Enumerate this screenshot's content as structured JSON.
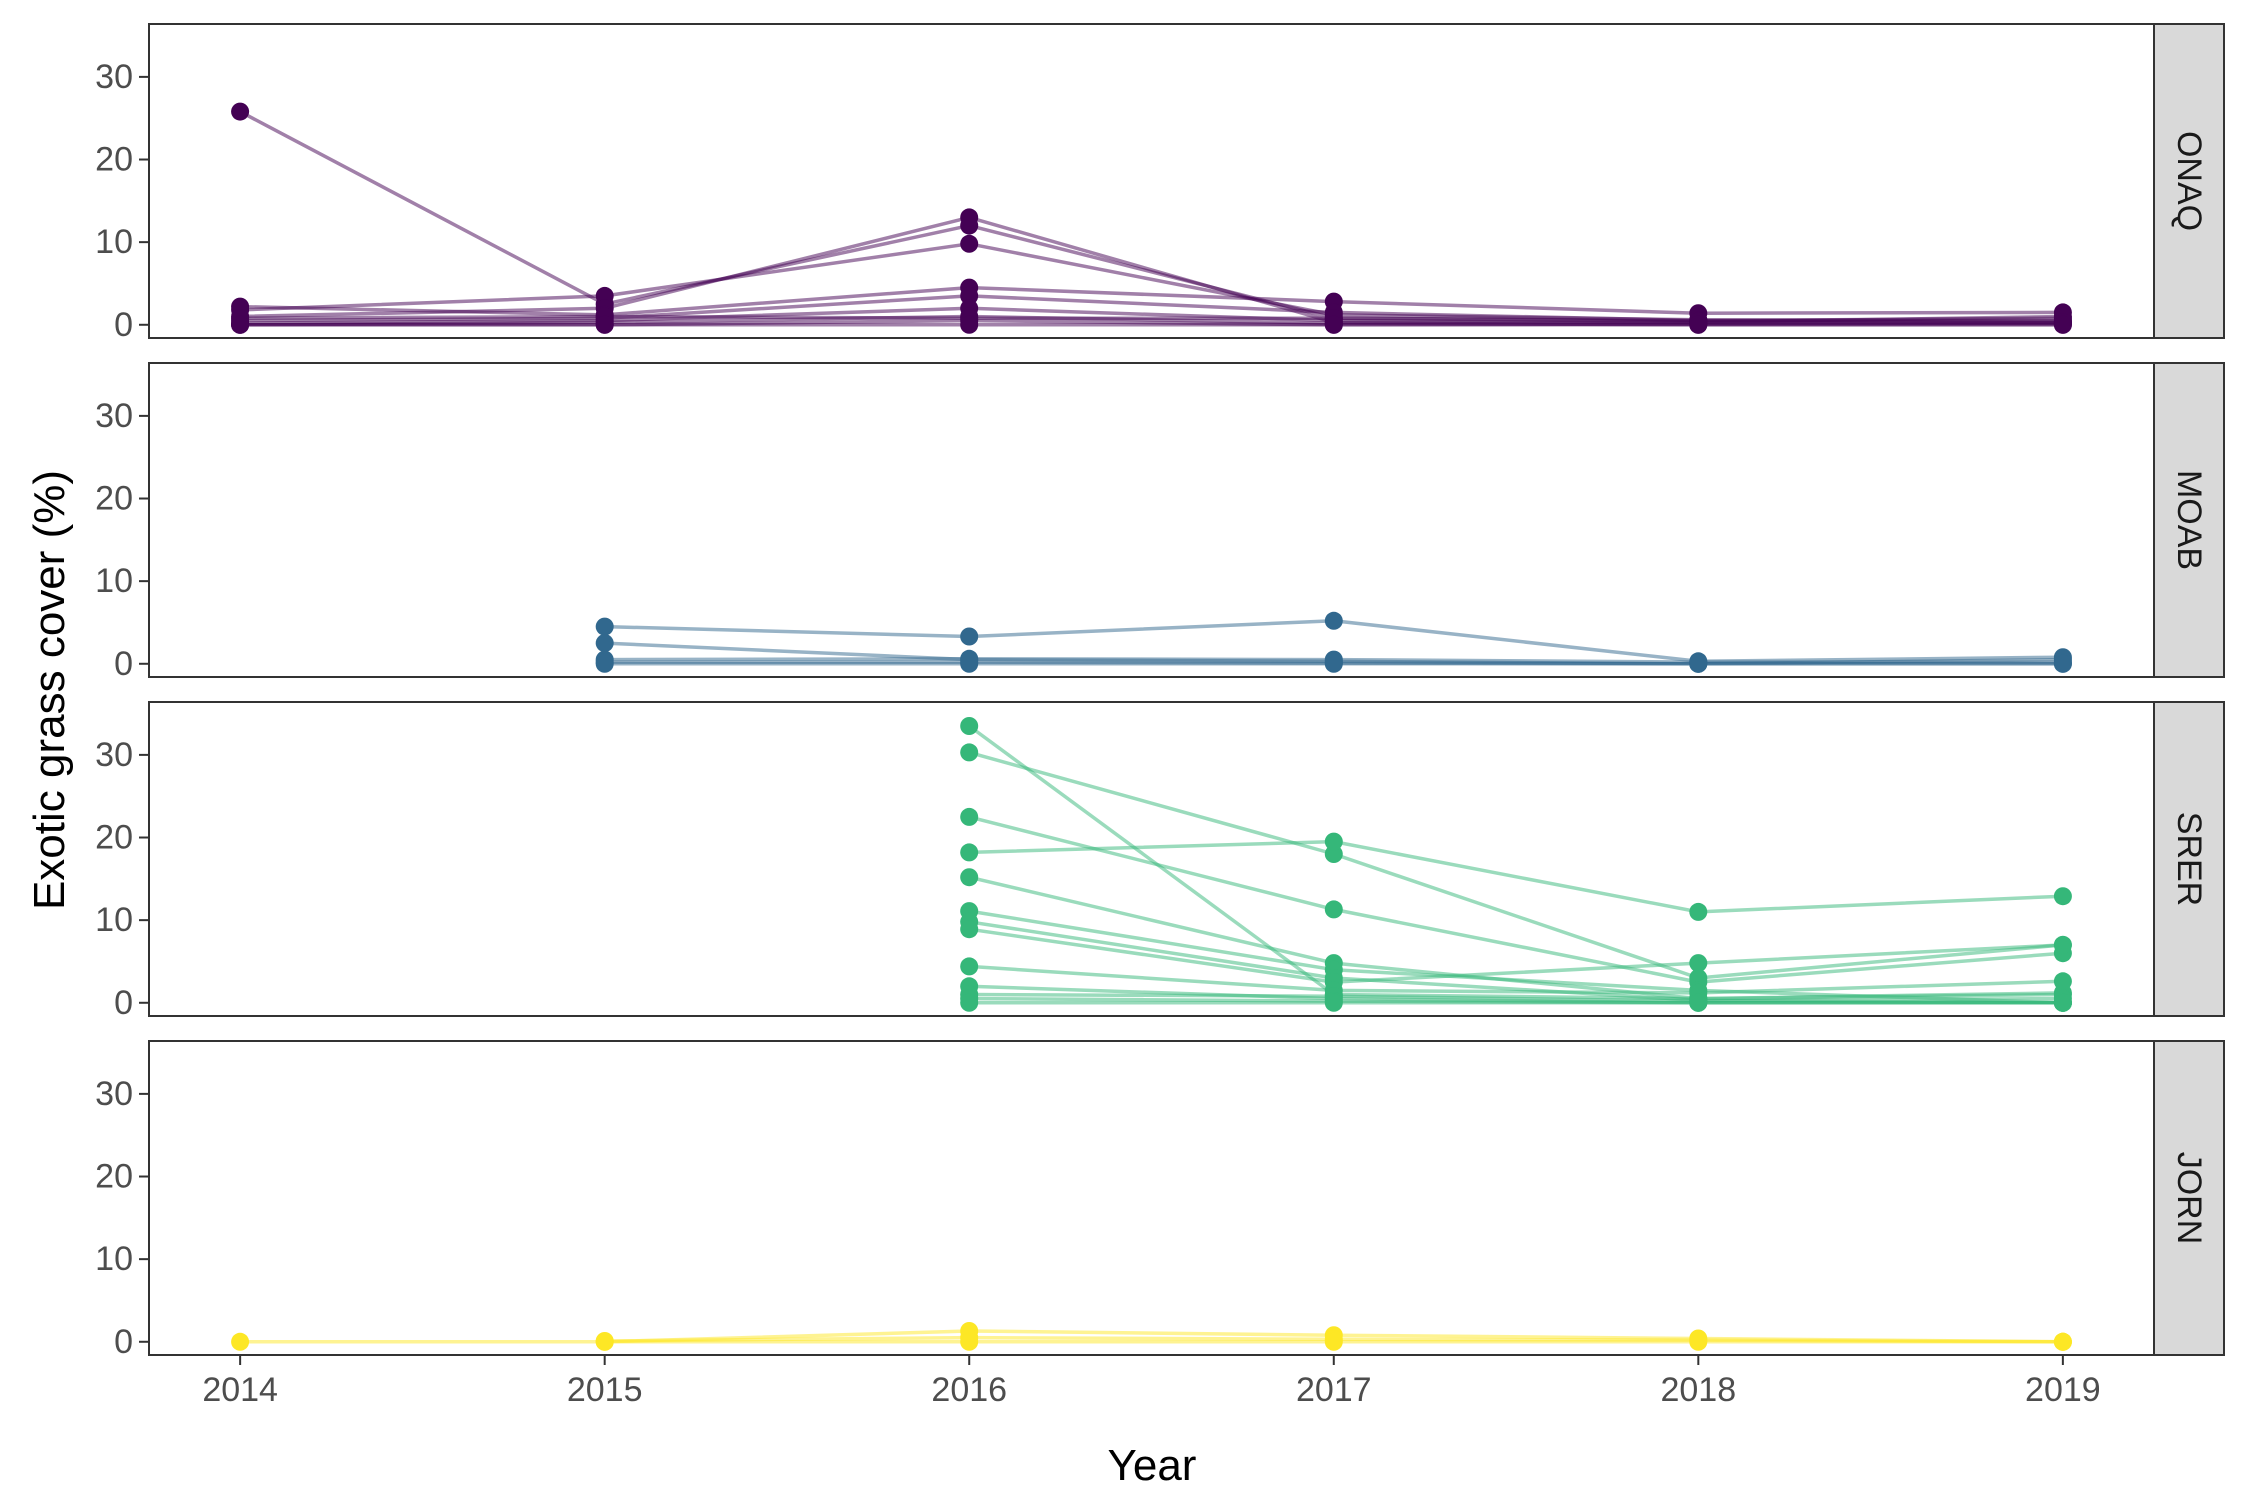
{
  "chart_data": {
    "type": "line",
    "xlabel": "Year",
    "ylabel": "Exotic grass cover (%)",
    "x_ticks": [
      "2014",
      "2015",
      "2016",
      "2017",
      "2018",
      "2019"
    ],
    "y_ticks": [
      "0",
      "10",
      "20",
      "30"
    ],
    "xlim": [
      2013.75,
      2019.25
    ],
    "ylim": [
      -1.6,
      36.4
    ],
    "grid": false,
    "legend": "none",
    "panels": [
      {
        "site": "ONAQ",
        "color": "#440154",
        "series": [
          {
            "x": [
              2014,
              2015,
              2016,
              2017,
              2018,
              2019
            ],
            "y": [
              25.8,
              2.5,
              12.0,
              0.8,
              0.5,
              0.4
            ]
          },
          {
            "x": [
              2014,
              2015,
              2016,
              2017,
              2018,
              2019
            ],
            "y": [
              1.8,
              3.5,
              9.8,
              1.2,
              0.6,
              0.5
            ]
          },
          {
            "x": [
              2014,
              2015,
              2016,
              2017,
              2018,
              2019
            ],
            "y": [
              1.0,
              2.0,
              13.0,
              0.3,
              0.2,
              0.2
            ]
          },
          {
            "x": [
              2014,
              2015,
              2016,
              2017,
              2018,
              2019
            ],
            "y": [
              2.2,
              1.2,
              4.5,
              2.8,
              1.4,
              1.5
            ]
          },
          {
            "x": [
              2014,
              2015,
              2016,
              2017,
              2018,
              2019
            ],
            "y": [
              0.5,
              0.8,
              3.5,
              1.5,
              0.5,
              0.8
            ]
          },
          {
            "x": [
              2014,
              2015,
              2016,
              2017,
              2018,
              2019
            ],
            "y": [
              0.2,
              0.5,
              2.0,
              0.5,
              0.3,
              1.0
            ]
          },
          {
            "x": [
              2014,
              2015,
              2016,
              2017,
              2018,
              2019
            ],
            "y": [
              0.0,
              0.3,
              1.0,
              0.2,
              0.0,
              0.0
            ]
          },
          {
            "x": [
              2014,
              2015,
              2016,
              2017,
              2018,
              2019
            ],
            "y": [
              0.0,
              0.0,
              0.5,
              0.0,
              0.1,
              0.2
            ]
          },
          {
            "x": [
              2014,
              2015,
              2016,
              2017,
              2018,
              2019
            ],
            "y": [
              0.8,
              1.0,
              0.8,
              0.8,
              0.4,
              0.3
            ]
          },
          {
            "x": [
              2014,
              2015,
              2016,
              2017,
              2018,
              2019
            ],
            "y": [
              0.0,
              0.0,
              0.0,
              0.0,
              0.0,
              0.0
            ]
          }
        ]
      },
      {
        "site": "MOAB",
        "color": "#31688e",
        "series": [
          {
            "x": [
              2015,
              2016,
              2017,
              2018,
              2019
            ],
            "y": [
              4.5,
              3.3,
              5.2,
              0.3,
              0.8
            ]
          },
          {
            "x": [
              2015,
              2016,
              2017,
              2018,
              2019
            ],
            "y": [
              2.5,
              0.5,
              0.3,
              0.0,
              0.5
            ]
          },
          {
            "x": [
              2015,
              2016,
              2017,
              2018,
              2019
            ],
            "y": [
              0.5,
              0.6,
              0.5,
              0.2,
              0.2
            ]
          },
          {
            "x": [
              2015,
              2016,
              2017,
              2018,
              2019
            ],
            "y": [
              0.0,
              0.0,
              0.0,
              0.0,
              0.0
            ]
          },
          {
            "x": [
              2015,
              2016,
              2017,
              2018,
              2019
            ],
            "y": [
              0.2,
              0.2,
              0.1,
              0.0,
              0.0
            ]
          }
        ]
      },
      {
        "site": "SRER",
        "color": "#35b779",
        "series": [
          {
            "x": [
              2016,
              2017,
              2018,
              2019
            ],
            "y": [
              33.5,
              1.0,
              0.5,
              1.0
            ]
          },
          {
            "x": [
              2016,
              2017,
              2018,
              2019
            ],
            "y": [
              30.3,
              18.0,
              3.0,
              7.0
            ]
          },
          {
            "x": [
              2016,
              2017,
              2018,
              2019
            ],
            "y": [
              22.5,
              11.3,
              2.5,
              6.0
            ]
          },
          {
            "x": [
              2016,
              2017,
              2018,
              2019
            ],
            "y": [
              18.2,
              19.5,
              11.0,
              12.9
            ]
          },
          {
            "x": [
              2016,
              2017,
              2018,
              2019
            ],
            "y": [
              15.2,
              4.8,
              0.5,
              1.2
            ]
          },
          {
            "x": [
              2016,
              2017,
              2018,
              2019
            ],
            "y": [
              11.1,
              4.0,
              1.5,
              0.0
            ]
          },
          {
            "x": [
              2016,
              2017,
              2018,
              2019
            ],
            "y": [
              9.8,
              3.0,
              0.3,
              0.0
            ]
          },
          {
            "x": [
              2016,
              2017,
              2018,
              2019
            ],
            "y": [
              8.9,
              2.5,
              4.8,
              7.0
            ]
          },
          {
            "x": [
              2016,
              2017,
              2018,
              2019
            ],
            "y": [
              4.4,
              1.5,
              1.2,
              2.6
            ]
          },
          {
            "x": [
              2016,
              2017,
              2018,
              2019
            ],
            "y": [
              2.0,
              0.5,
              0.0,
              0.0
            ]
          },
          {
            "x": [
              2016,
              2017,
              2018,
              2019
            ],
            "y": [
              1.0,
              0.8,
              0.2,
              0.5
            ]
          },
          {
            "x": [
              2016,
              2017,
              2018,
              2019
            ],
            "y": [
              0.5,
              0.2,
              0.0,
              0.0
            ]
          },
          {
            "x": [
              2016,
              2017,
              2018,
              2019
            ],
            "y": [
              0.0,
              0.0,
              0.0,
              0.0
            ]
          }
        ]
      },
      {
        "site": "JORN",
        "color": "#fde725",
        "series": [
          {
            "x": [
              2014,
              2015,
              2016,
              2017,
              2018,
              2019
            ],
            "y": [
              0.0,
              0.0,
              1.3,
              0.8,
              0.4,
              0.0
            ]
          },
          {
            "x": [
              2015,
              2016,
              2017,
              2018,
              2019
            ],
            "y": [
              0.1,
              0.5,
              0.3,
              0.2,
              0.0
            ]
          },
          {
            "x": [
              2015,
              2016,
              2017,
              2018,
              2019
            ],
            "y": [
              0.0,
              0.0,
              0.0,
              0.0,
              0.0
            ]
          }
        ]
      }
    ]
  }
}
